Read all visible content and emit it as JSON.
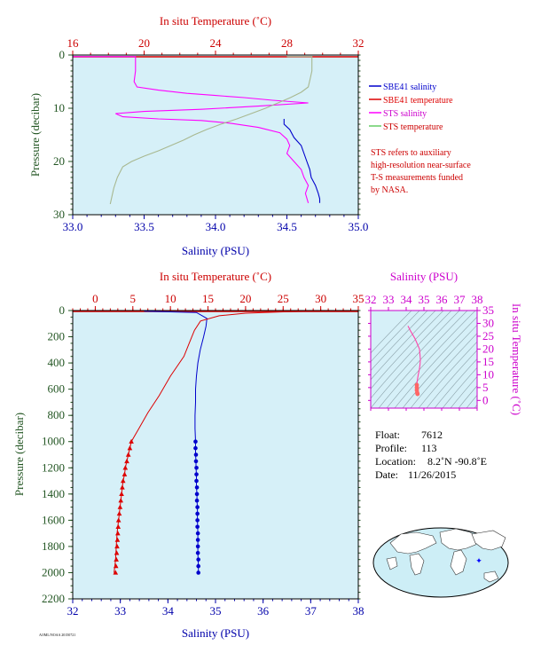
{
  "colors": {
    "salinity_sbe": "#0000cc",
    "temperature_sbe": "#dd0000",
    "salinity_sts": "#ff00ff",
    "temperature_sts": "#66cc66",
    "panel_bg": "#d6f0f8",
    "red_text": "#cc0000",
    "blue_text": "#0000aa",
    "green_text": "#225522",
    "magenta_text": "#cc00cc"
  },
  "top_panel": {
    "top_axis_title": "In situ Temperature (˚C)",
    "bottom_axis_title": "Salinity (PSU)",
    "left_axis_title": "Pressure (decibar)",
    "temp_ticks": [
      "16",
      "20",
      "24",
      "28",
      "32"
    ],
    "sal_ticks": [
      "33.0",
      "33.5",
      "34.0",
      "34.5",
      "35.0"
    ],
    "pres_ticks": [
      "0",
      "10",
      "20",
      "30"
    ]
  },
  "legend": {
    "items": [
      {
        "label": "SBE41 salinity",
        "color": "#0000cc"
      },
      {
        "label": "SBE41 temperature",
        "color": "#dd0000"
      },
      {
        "label": "STS salinity",
        "color": "#ff00ff"
      },
      {
        "label": "STS temperature",
        "color": "#66cc66"
      }
    ],
    "note_lines": [
      "STS refers to auxiliary",
      "high-resolution near-surface",
      "T-S measurements funded",
      "by NASA."
    ]
  },
  "main_panel": {
    "top_axis_title": "In situ Temperature (˚C)",
    "bottom_axis_title": "Salinity (PSU)",
    "left_axis_title": "Pressure (decibar)",
    "temp_ticks": [
      "0",
      "5",
      "10",
      "15",
      "20",
      "25",
      "30",
      "35"
    ],
    "sal_ticks": [
      "32",
      "33",
      "34",
      "35",
      "36",
      "37",
      "38"
    ],
    "pres_ticks": [
      "0",
      "200",
      "400",
      "600",
      "800",
      "1000",
      "1200",
      "1400",
      "1600",
      "1800",
      "2000",
      "2200"
    ]
  },
  "ts_panel": {
    "top_axis_title": "Salinity (PSU)",
    "right_axis_title": "In situ Temperature (˚C)",
    "sal_ticks": [
      "32",
      "33",
      "34",
      "35",
      "36",
      "37",
      "38"
    ],
    "temp_ticks": [
      "0",
      "5",
      "10",
      "15",
      "20",
      "25",
      "30",
      "35"
    ]
  },
  "info": {
    "float_label": "Float:",
    "float_value": "7612",
    "profile_label": "Profile:",
    "profile_value": "113",
    "location_label": "Location:",
    "location_value": "8.2˚N  -90.8˚E",
    "date_label": "Date:",
    "date_value": "11/26/2015"
  },
  "footer_stamp": "AOML/NOAA 20150721",
  "chart_data": [
    {
      "type": "line",
      "panel": "top",
      "xlim_temperature": [
        16,
        32
      ],
      "xlim_salinity": [
        33.0,
        35.0
      ],
      "ylim_pressure": [
        30,
        0
      ],
      "series": [
        {
          "name": "SBE41 salinity",
          "axis": "salinity",
          "x": [
            34.48,
            34.48,
            34.52,
            34.55,
            34.6,
            34.62,
            34.64,
            34.66,
            34.67,
            34.7,
            34.72,
            34.73,
            34.73
          ],
          "y": [
            12.0,
            13.0,
            14.0,
            15.5,
            17.0,
            18.5,
            20.0,
            21.5,
            23.0,
            24.5,
            26.0,
            27.0,
            27.8
          ]
        },
        {
          "name": "SBE41 temperature",
          "axis": "temperature",
          "x": [
            31.9,
            31.9
          ],
          "y": [
            0.5,
            0.5
          ]
        },
        {
          "name": "STS salinity",
          "axis": "salinity",
          "x": [
            33.0,
            33.44,
            33.44,
            33.43,
            33.45,
            33.6,
            33.8,
            34.0,
            34.2,
            34.4,
            34.65,
            34.3,
            33.9,
            33.5,
            33.3,
            33.35,
            33.6,
            33.9,
            34.1,
            34.3,
            34.45,
            34.5,
            34.52,
            34.5,
            34.55,
            34.6,
            34.62,
            34.65,
            34.63,
            34.65
          ],
          "y": [
            0.3,
            0.3,
            3.0,
            5.0,
            6.0,
            6.6,
            7.2,
            7.6,
            8.0,
            8.5,
            9.0,
            9.6,
            10.2,
            10.6,
            11.0,
            11.6,
            12.0,
            12.3,
            12.8,
            13.6,
            14.6,
            15.8,
            17.0,
            18.5,
            20.0,
            21.5,
            23.0,
            24.5,
            26.0,
            27.8
          ]
        },
        {
          "name": "STS temperature",
          "axis": "temperature",
          "x": [
            28.0,
            29.4,
            29.4,
            29.3,
            29.2,
            28.8,
            28.2,
            27.5,
            26.8,
            26.0,
            25.2,
            24.3,
            23.5,
            22.8,
            22.2,
            21.5,
            20.8,
            20.0,
            19.3,
            18.8,
            18.5,
            18.3,
            18.2,
            18.1
          ],
          "y": [
            0.3,
            0.3,
            3.0,
            4.5,
            6.0,
            7.0,
            8.0,
            9.0,
            10.0,
            11.0,
            12.0,
            13.0,
            14.0,
            15.0,
            16.0,
            17.0,
            18.0,
            19.0,
            20.0,
            21.0,
            23.0,
            25.0,
            26.5,
            28.0
          ]
        }
      ]
    },
    {
      "type": "line",
      "panel": "main",
      "xlim_temperature": [
        -3,
        35
      ],
      "xlim_salinity": [
        32,
        38
      ],
      "ylim_pressure": [
        2200,
        0
      ],
      "series": [
        {
          "name": "Salinity",
          "axis": "salinity",
          "x": [
            33.5,
            34.6,
            34.82,
            34.8,
            34.75,
            34.68,
            34.63,
            34.6,
            34.58,
            34.58,
            34.57,
            34.57,
            34.58,
            34.58,
            34.58,
            34.59,
            34.59,
            34.6,
            34.6,
            34.6,
            34.61,
            34.61,
            34.62,
            34.62,
            34.62,
            34.63,
            34.63,
            34.63,
            34.64,
            34.64
          ],
          "y": [
            5,
            15,
            60,
            120,
            200,
            300,
            400,
            500,
            600,
            700,
            800,
            900,
            1000,
            1050,
            1100,
            1150,
            1200,
            1250,
            1300,
            1350,
            1400,
            1450,
            1500,
            1550,
            1600,
            1700,
            1750,
            1850,
            1950,
            2000
          ]
        },
        {
          "name": "Temperature",
          "axis": "temperature",
          "x": [
            29.0,
            25.0,
            20.0,
            16.5,
            14.0,
            13.2,
            12.5,
            11.8,
            10.0,
            8.5,
            7.0,
            5.8,
            4.8,
            4.6,
            4.4,
            4.2,
            4.0,
            3.9,
            3.7,
            3.6,
            3.5,
            3.4,
            3.3,
            3.2,
            3.1,
            3.0,
            2.9,
            2.8,
            2.7,
            2.6,
            2.5
          ],
          "y": [
            5,
            10,
            20,
            40,
            80,
            150,
            250,
            350,
            500,
            650,
            780,
            900,
            1000,
            1050,
            1100,
            1150,
            1200,
            1250,
            1300,
            1350,
            1400,
            1450,
            1500,
            1550,
            1600,
            1650,
            1700,
            1800,
            1900,
            1950,
            2000
          ]
        },
        {
          "name": "Salinity bottles",
          "axis": "salinity",
          "markers": "circle",
          "x": [
            34.58,
            34.58,
            34.59,
            34.59,
            34.6,
            34.6,
            34.6,
            34.61,
            34.61,
            34.61,
            34.62,
            34.62,
            34.62,
            34.62,
            34.63,
            34.63,
            34.63,
            34.63,
            34.64,
            34.64,
            34.64
          ],
          "y": [
            1000,
            1050,
            1100,
            1150,
            1200,
            1250,
            1300,
            1350,
            1400,
            1450,
            1500,
            1550,
            1600,
            1650,
            1700,
            1750,
            1800,
            1850,
            1900,
            1950,
            2000
          ]
        },
        {
          "name": "Temperature bottles",
          "axis": "temperature",
          "markers": "triangle",
          "x": [
            4.8,
            4.6,
            4.4,
            4.2,
            4.0,
            3.9,
            3.7,
            3.6,
            3.5,
            3.4,
            3.3,
            3.2,
            3.1,
            3.05,
            3.0,
            2.95,
            2.9,
            2.85,
            2.8,
            2.75,
            2.7
          ],
          "y": [
            1000,
            1050,
            1100,
            1150,
            1200,
            1250,
            1300,
            1350,
            1400,
            1450,
            1500,
            1550,
            1600,
            1650,
            1700,
            1750,
            1800,
            1850,
            1900,
            1950,
            2000
          ]
        }
      ]
    },
    {
      "type": "scatter",
      "panel": "ts",
      "xlim_salinity": [
        32,
        38
      ],
      "ylim_temperature": [
        -3,
        35
      ],
      "series": [
        {
          "name": "T-S profile",
          "x": [
            34.1,
            34.25,
            34.5,
            34.75,
            34.8,
            34.78,
            34.74,
            34.68,
            34.63,
            34.6,
            34.6,
            34.6,
            34.62,
            34.64
          ],
          "y": [
            29.0,
            27.0,
            24.0,
            20.0,
            16.0,
            14.0,
            12.0,
            10.0,
            8.0,
            6.0,
            5.0,
            4.0,
            3.0,
            2.5
          ]
        }
      ]
    }
  ]
}
